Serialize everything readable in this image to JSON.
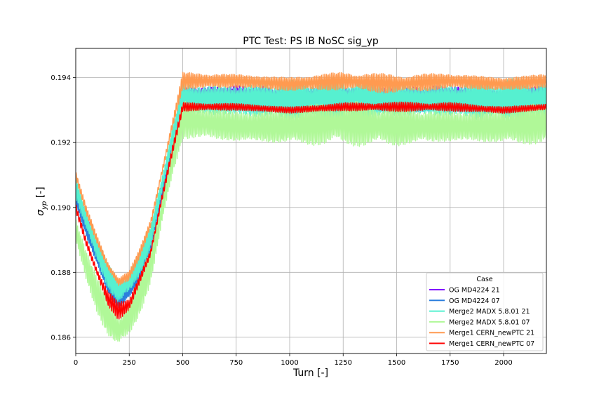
{
  "chart_data": {
    "type": "line",
    "title": "PTC Test: PS IB NoSC sig_yp",
    "xlabel": "Turn [-]",
    "ylabel_main": "σ",
    "ylabel_sub": "yp",
    "ylabel_unit": " [-]",
    "xlim": [
      0,
      2200
    ],
    "ylim": [
      0.1855,
      0.1949
    ],
    "xticks": [
      0,
      250,
      500,
      750,
      1000,
      1250,
      1500,
      1750,
      2000
    ],
    "xtick_labels": [
      "0",
      "250",
      "500",
      "750",
      "1000",
      "1250",
      "1500",
      "1750",
      "2000"
    ],
    "yticks": [
      0.186,
      0.188,
      0.19,
      0.192,
      0.194
    ],
    "ytick_labels": [
      "0.186",
      "0.188",
      "0.190",
      "0.192",
      "0.194"
    ],
    "grid": true,
    "legend": {
      "title": "Case",
      "placement": "lower-right"
    },
    "series": [
      {
        "name": "OG MD4224 21",
        "color": "#8000ff",
        "x": [
          0,
          50,
          100,
          150,
          200,
          250,
          300,
          350,
          400,
          450,
          500,
          750,
          1000,
          1250,
          1500,
          1750,
          2000,
          2200
        ],
        "y": [
          0.1905,
          0.1895,
          0.1886,
          0.1878,
          0.1873,
          0.1876,
          0.1882,
          0.189,
          0.1905,
          0.192,
          0.1935,
          0.1935,
          0.1934,
          0.1935,
          0.1934,
          0.1935,
          0.1934,
          0.1935
        ],
        "amp": [
          0.0003,
          0.0003,
          0.0003,
          0.0003,
          0.0003,
          0.0003,
          0.0003,
          0.0003,
          0.0003,
          0.0003,
          0.0003,
          0.0003,
          0.0003,
          0.0003,
          0.0003,
          0.0003,
          0.0003,
          0.0003
        ]
      },
      {
        "name": "OG MD4224 07",
        "color": "#2c7fdd",
        "x": [
          0,
          50,
          100,
          150,
          200,
          250,
          300,
          350,
          400,
          450,
          500,
          750,
          1000,
          1250,
          1500,
          1750,
          2000,
          2200
        ],
        "y": [
          0.1903,
          0.1893,
          0.1884,
          0.1876,
          0.1871,
          0.1874,
          0.188,
          0.1888,
          0.1903,
          0.1918,
          0.1932,
          0.1932,
          0.1931,
          0.1932,
          0.1931,
          0.1932,
          0.1931,
          0.1932
        ],
        "amp": [
          0.00025,
          0.00025,
          0.00025,
          0.00025,
          0.00025,
          0.00025,
          0.00025,
          0.00025,
          0.00025,
          0.00025,
          0.00025,
          0.00025,
          0.00025,
          0.00025,
          0.00025,
          0.00025,
          0.00025,
          0.00025
        ]
      },
      {
        "name": "Merge2 MADX 5.8.01 21",
        "color": "#56f0d0",
        "x": [
          0,
          50,
          100,
          150,
          200,
          250,
          300,
          350,
          400,
          450,
          500,
          750,
          1000,
          1250,
          1500,
          1750,
          2000,
          2200
        ],
        "y": [
          0.1906,
          0.1896,
          0.1887,
          0.1879,
          0.1874,
          0.1877,
          0.1883,
          0.1891,
          0.1906,
          0.1921,
          0.1933,
          0.1933,
          0.1933,
          0.1933,
          0.1933,
          0.1933,
          0.1933,
          0.1933
        ],
        "amp": [
          0.0004,
          0.0004,
          0.0004,
          0.0004,
          0.0004,
          0.0004,
          0.0004,
          0.0004,
          0.0004,
          0.0004,
          0.0007,
          0.0007,
          0.0007,
          0.0007,
          0.0007,
          0.0007,
          0.0007,
          0.0007
        ]
      },
      {
        "name": "Merge2 MADX 5.8.01 07",
        "color": "#b0f898",
        "x": [
          0,
          50,
          100,
          150,
          200,
          250,
          300,
          350,
          400,
          450,
          500,
          750,
          1000,
          1250,
          1500,
          1750,
          2000,
          2200
        ],
        "y": [
          0.1893,
          0.1882,
          0.1873,
          0.1866,
          0.1862,
          0.1866,
          0.1873,
          0.1882,
          0.1898,
          0.1914,
          0.1927,
          0.1925,
          0.1925,
          0.1926,
          0.1925,
          0.1925,
          0.1925,
          0.1926
        ],
        "amp": [
          0.0006,
          0.0006,
          0.0006,
          0.0006,
          0.0006,
          0.0006,
          0.0006,
          0.0006,
          0.0006,
          0.0006,
          0.0007,
          0.0007,
          0.0007,
          0.0007,
          0.0007,
          0.0007,
          0.0007,
          0.0007
        ]
      },
      {
        "name": "Merge1 CERN_newPTC 21",
        "color": "#ff9a50",
        "x": [
          0,
          50,
          100,
          150,
          200,
          250,
          300,
          350,
          400,
          450,
          500,
          750,
          1000,
          1250,
          1500,
          1750,
          2000,
          2200
        ],
        "y": [
          0.191,
          0.1899,
          0.189,
          0.1882,
          0.1877,
          0.1879,
          0.1886,
          0.1895,
          0.191,
          0.1925,
          0.1939,
          0.1939,
          0.1938,
          0.1939,
          0.1938,
          0.1939,
          0.1938,
          0.1939
        ],
        "amp": [
          0.00015,
          0.00015,
          0.00015,
          0.00015,
          0.00015,
          0.00015,
          0.00015,
          0.00015,
          0.00015,
          0.00015,
          0.0003,
          0.0003,
          0.0003,
          0.0003,
          0.0003,
          0.0003,
          0.0003,
          0.0003
        ]
      },
      {
        "name": "Merge1 CERN_newPTC 07",
        "color": "#ff0000",
        "x": [
          0,
          50,
          100,
          150,
          200,
          250,
          300,
          350,
          400,
          450,
          500,
          750,
          1000,
          1250,
          1500,
          1750,
          2000,
          2200
        ],
        "y": [
          0.19,
          0.1889,
          0.188,
          0.1872,
          0.1868,
          0.187,
          0.1878,
          0.1886,
          0.1902,
          0.1917,
          0.1931,
          0.1931,
          0.193,
          0.1931,
          0.1931,
          0.1931,
          0.193,
          0.1931
        ],
        "amp": [
          0.00015,
          0.00015,
          0.00015,
          0.0003,
          0.0003,
          0.00015,
          0.00015,
          0.00015,
          0.00015,
          0.00015,
          0.00015,
          0.00015,
          0.00015,
          0.00015,
          0.00015,
          0.00015,
          0.00015,
          0.00015
        ]
      }
    ]
  }
}
